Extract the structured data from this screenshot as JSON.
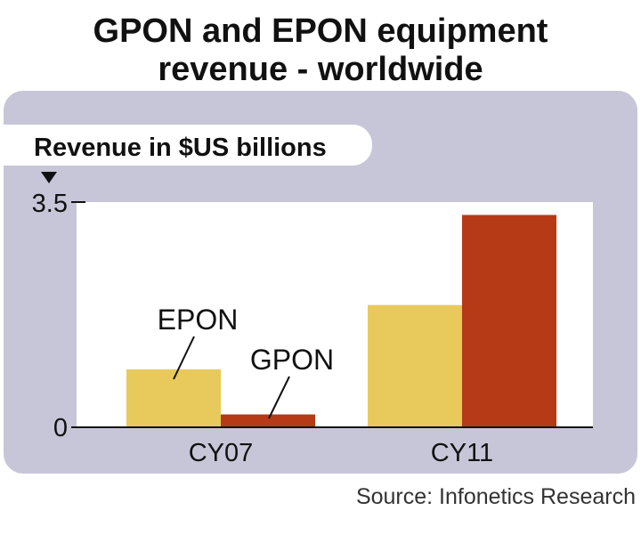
{
  "chart_data": {
    "type": "bar",
    "title_lines": [
      "GPON and EPON equipment",
      "revenue - worldwide"
    ],
    "ylabel": "Revenue in $US billions",
    "categories": [
      "CY07",
      "CY11"
    ],
    "series": [
      {
        "name": "EPON",
        "values": [
          0.9,
          1.9
        ]
      },
      {
        "name": "GPON",
        "values": [
          0.2,
          3.3
        ]
      }
    ],
    "ylim": [
      0,
      3.5
    ],
    "yticks": [
      "0",
      "3.5"
    ],
    "grid": false,
    "legend": "inline labels",
    "source": "Source: Infonetics Research"
  },
  "colors": {
    "epon": "#e8c95c",
    "gpon": "#b63a15",
    "panel": "#c7c6d8",
    "plot": "#ffffff"
  }
}
